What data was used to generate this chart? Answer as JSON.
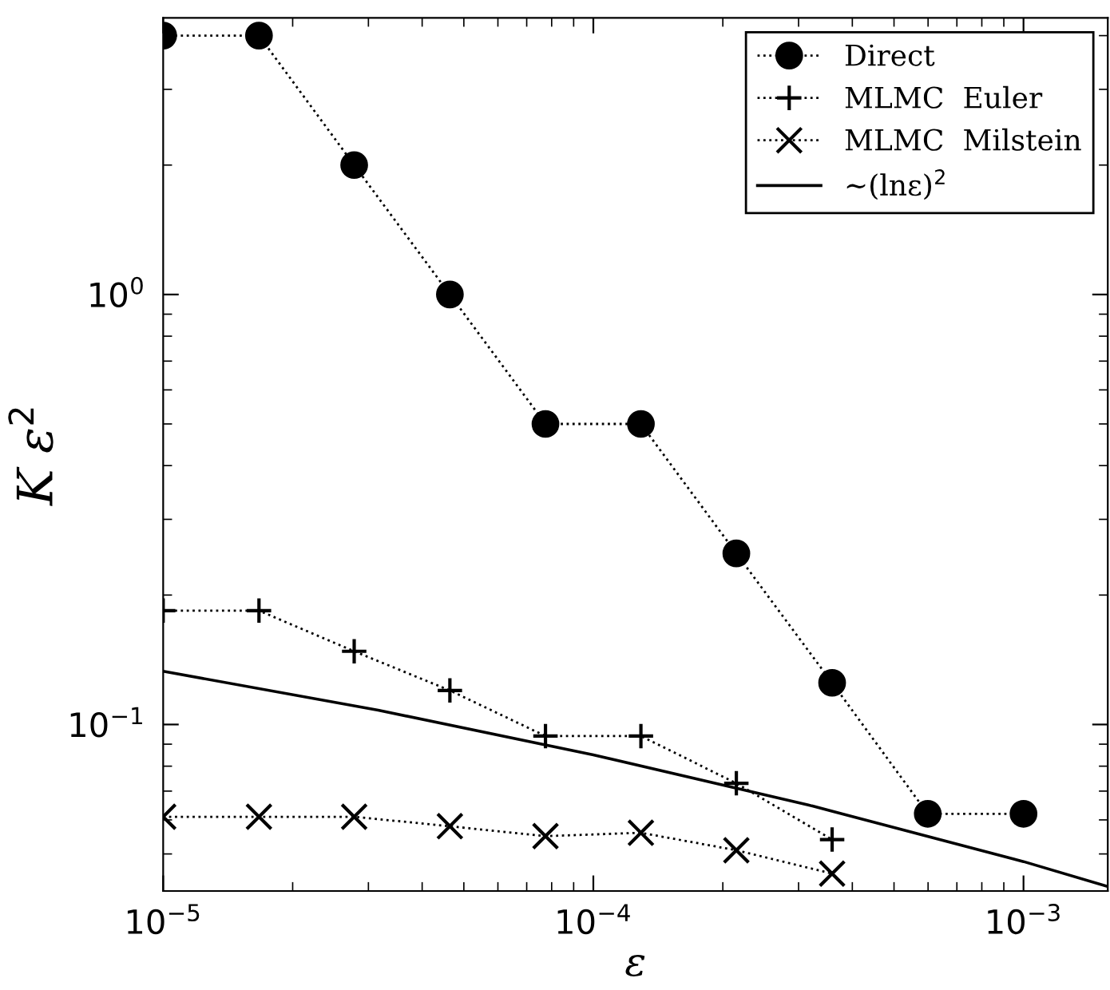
{
  "chart_data": {
    "type": "line",
    "xlabel": "ε",
    "ylabel": "K ε$^{2}$",
    "log": "xy",
    "legend": "top right",
    "grid": false,
    "line_style": "dotted",
    "x": [
      1e-05,
      1.67e-05,
      2.78e-05,
      4.64e-05,
      7.74e-05,
      0.000129,
      0.000215,
      0.000359,
      0.000599,
      0.001
    ],
    "xlim": [
      1e-05,
      0.00157
    ],
    "ylim": [
      0.041,
      4.4
    ],
    "xticks": [
      {
        "value": 1e-05,
        "label": "10$^{−5}$"
      },
      {
        "value": 0.0001,
        "label": "10$^{−4}$"
      },
      {
        "value": 0.001,
        "label": "10$^{−3}$"
      }
    ],
    "yticks": [
      {
        "value": 0.1,
        "label": "10$^{−1}$"
      },
      {
        "value": 1,
        "label": "10$^{0}$"
      }
    ],
    "series": [
      {
        "name": "Direct",
        "color": "#000000",
        "marker": "circle",
        "values": [
          4,
          4,
          2,
          1,
          0.5,
          0.5,
          0.25,
          0.125,
          0.062,
          0.062
        ]
      },
      {
        "name": "MLMC  Euler",
        "color": "#000000",
        "marker": "plus",
        "values": [
          0.184,
          0.184,
          0.148,
          0.12,
          0.094,
          0.094,
          0.073,
          0.054,
          null,
          null
        ]
      },
      {
        "name": "MLMC  Milstein",
        "color": "#000000",
        "marker": "cross",
        "values": [
          0.061,
          0.061,
          0.061,
          0.058,
          0.055,
          0.056,
          0.051,
          0.045,
          null,
          null
        ]
      },
      {
        "name": "∼(lnε)$^{2}$",
        "color": "#000000",
        "marker": "none",
        "line_style": "solid",
        "x": [
          1e-05,
          3.16e-05,
          0.0001,
          0.000316,
          0.001,
          0.00157
        ],
        "values": [
          0.133,
          0.108,
          0.085,
          0.065,
          0.048,
          0.042
        ]
      }
    ]
  }
}
